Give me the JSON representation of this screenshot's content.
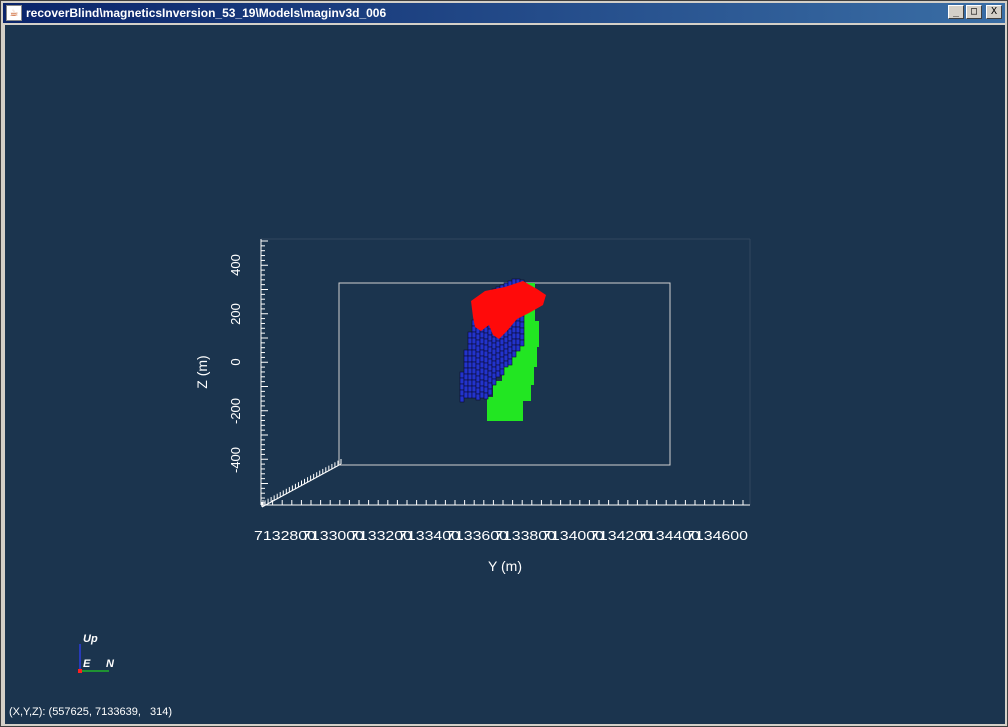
{
  "window": {
    "title": "recoverBlind\\magneticsInversion_53_19\\Models\\maginv3d_006",
    "app_icon": "java-cup-icon",
    "buttons": {
      "minimize": "_",
      "maximize": "□",
      "close": "X"
    }
  },
  "plot": {
    "z_label": "Z (m)",
    "y_label": "Y (m)",
    "z_ticks": [
      "400",
      "200",
      "0",
      "-200",
      "-400"
    ],
    "y_ticks": [
      "7132800",
      "7133000",
      "7133200",
      "7133400",
      "7133600",
      "7133800",
      "7134000",
      "7134200",
      "7134400",
      "7134600"
    ],
    "colors": {
      "background": "#1b344e",
      "blue_cells": "#2233cc",
      "green_cells": "#22e622",
      "red_body": "#ff0a0a",
      "box": "#d0d0d0"
    }
  },
  "orientation": {
    "up": "Up",
    "east": "E",
    "north": "N"
  },
  "status": {
    "coords": "(X,Y,Z): (557625, 7133639,   314)"
  }
}
